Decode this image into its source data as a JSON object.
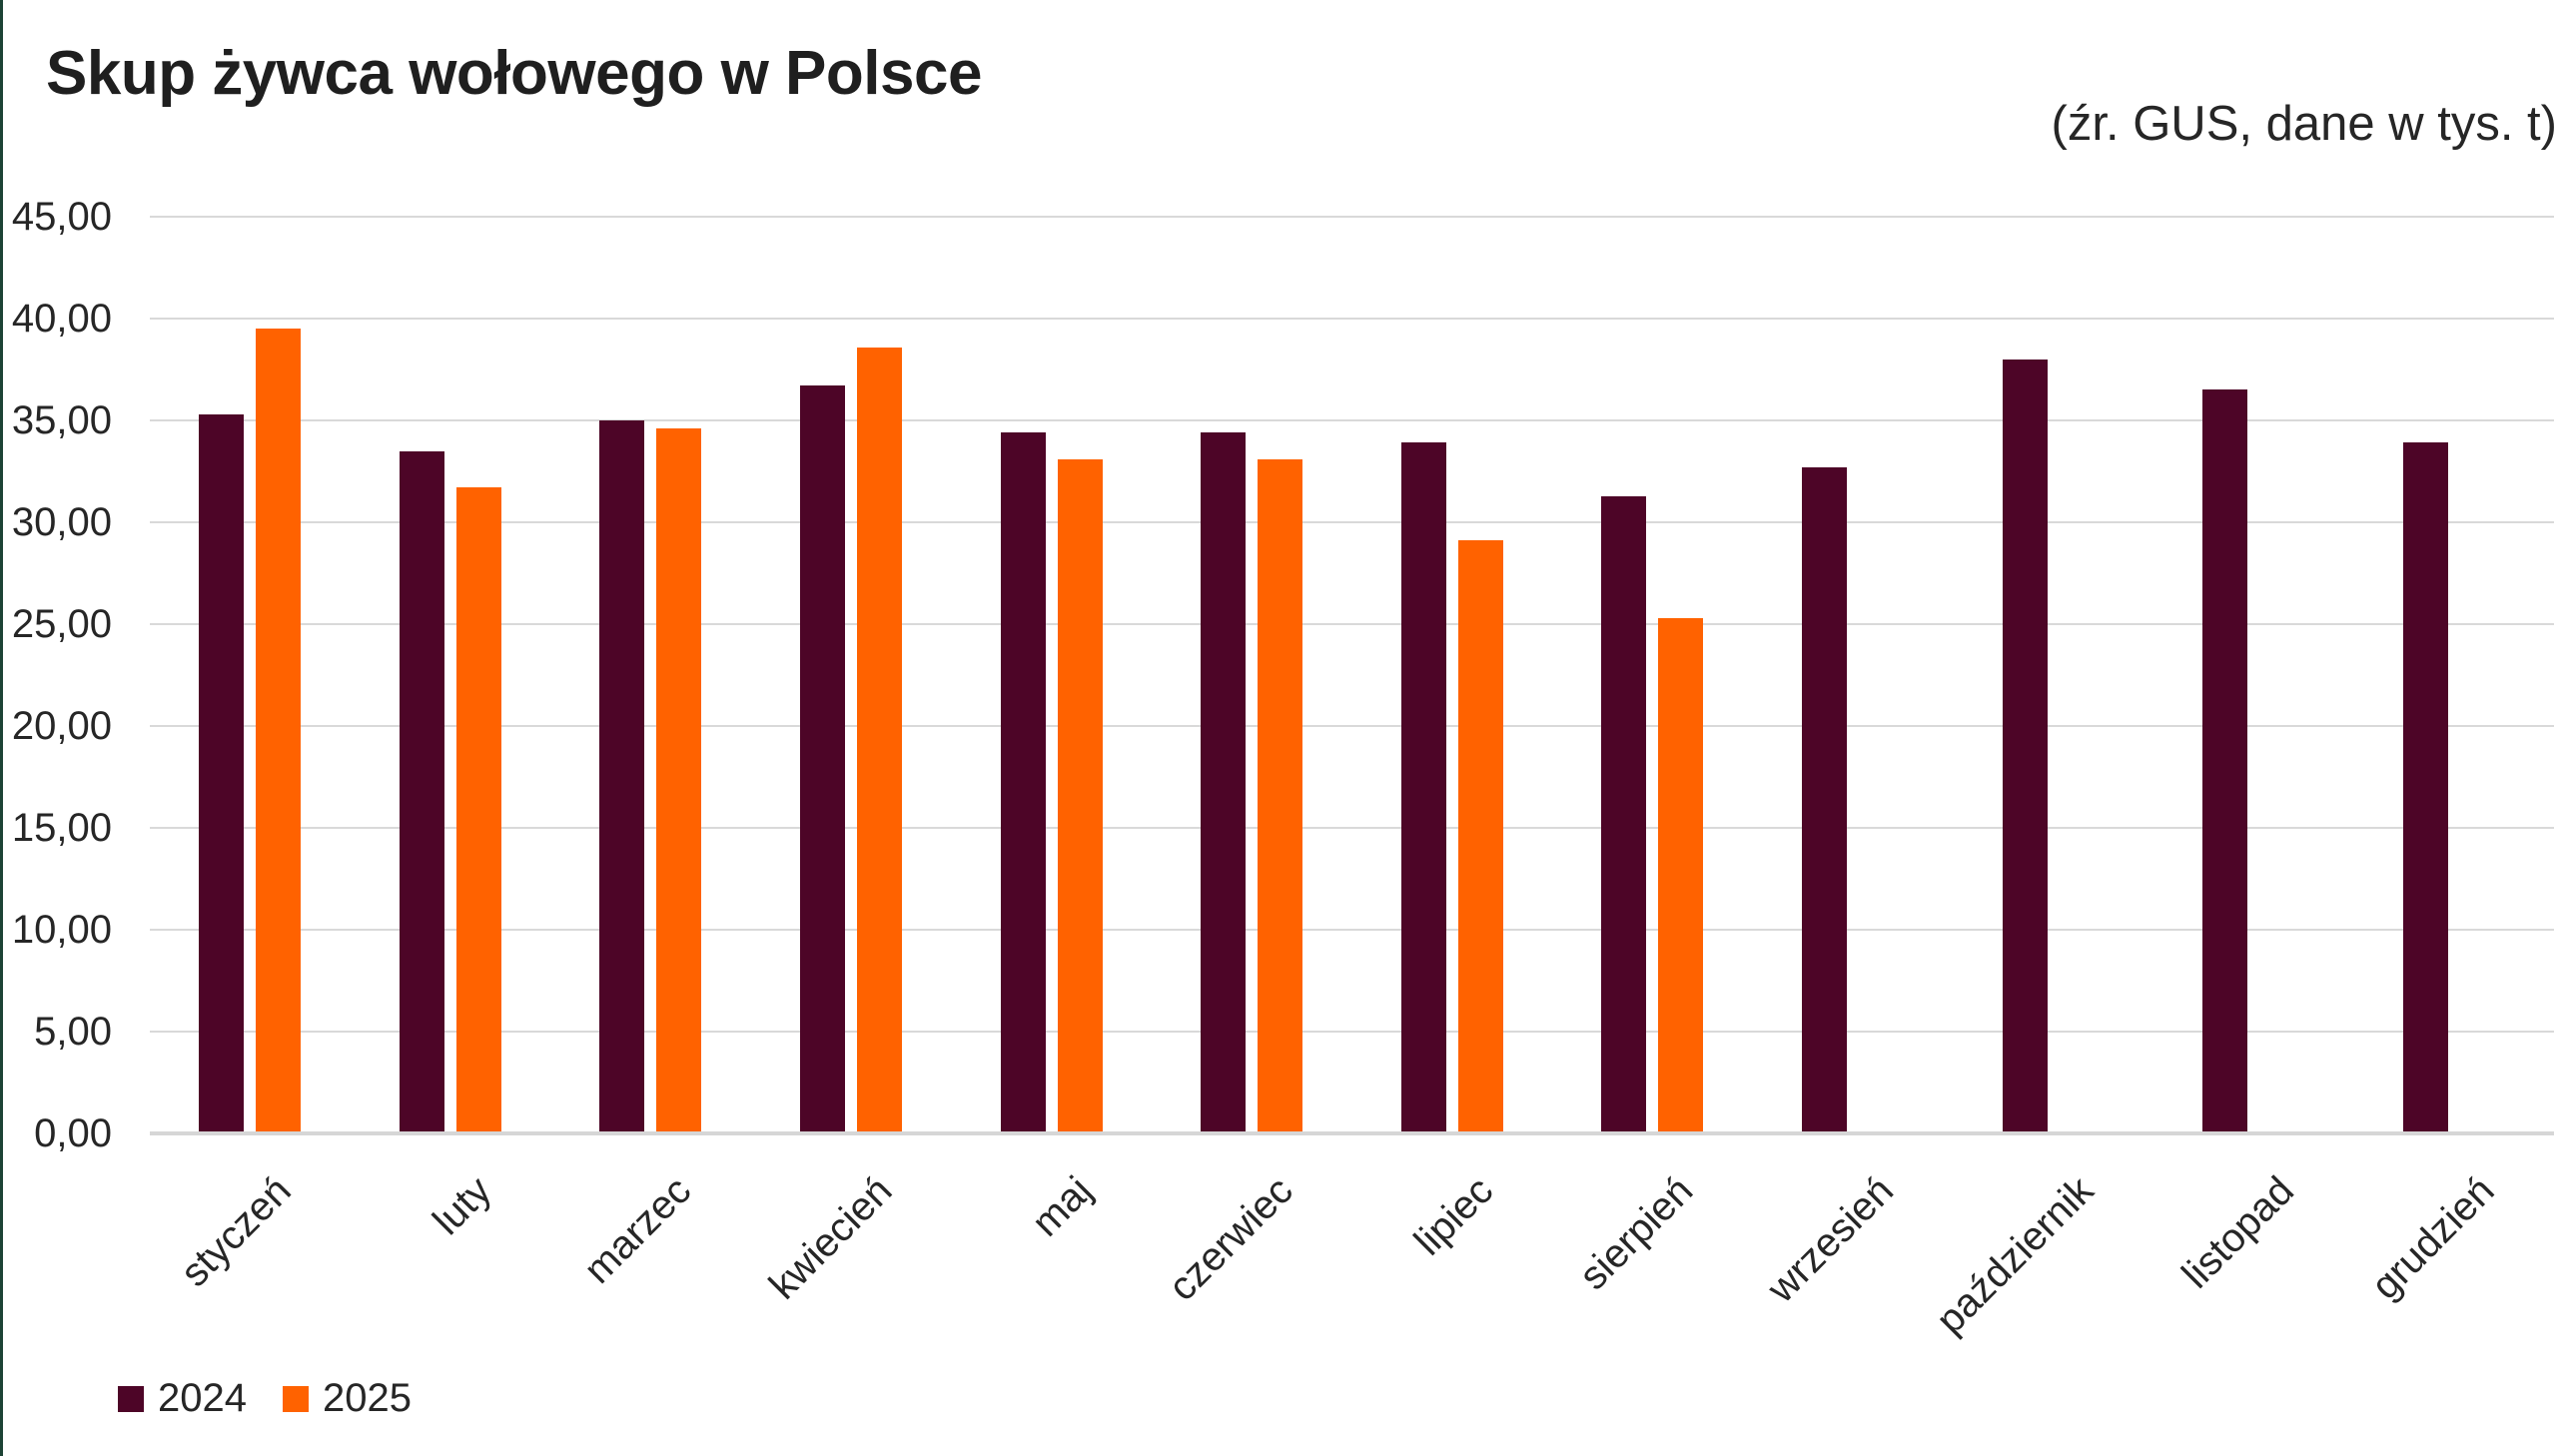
{
  "page": {
    "title": "Skup żywca wołowego w Polsce",
    "source_note": "(źr. GUS, dane w tys. t)"
  },
  "colors": {
    "series_2024": "#4d0527",
    "series_2025": "#ff6200",
    "gridline": "#d9d9d9",
    "axis_line": "#d6d6d6",
    "left_edge_accent": "#1d4335",
    "title_text": "#1f1f1f",
    "label_text": "#262626"
  },
  "legend": {
    "items": [
      {
        "label": "2024",
        "color_key": "series_2024"
      },
      {
        "label": "2025",
        "color_key": "series_2025"
      }
    ]
  },
  "chart_data": {
    "type": "bar",
    "title": "Skup żywca wołowego w Polsce",
    "subtitle": "(źr. GUS, dane w tys. t)",
    "xlabel": "",
    "ylabel": "",
    "categories": [
      "styczeń",
      "luty",
      "marzec",
      "kwiecień",
      "maj",
      "czerwiec",
      "lipiec",
      "sierpień",
      "wrzesień",
      "październik",
      "listopad",
      "grudzień"
    ],
    "series": [
      {
        "name": "2024",
        "color_key": "series_2024",
        "values": [
          35.2,
          33.4,
          34.9,
          36.6,
          34.3,
          34.3,
          33.8,
          31.2,
          32.6,
          37.9,
          36.4,
          33.8
        ]
      },
      {
        "name": "2025",
        "color_key": "series_2025",
        "values": [
          39.4,
          31.6,
          34.5,
          38.5,
          33.0,
          33.0,
          29.0,
          25.2,
          null,
          null,
          null,
          null
        ]
      }
    ],
    "ylim": [
      0,
      45
    ],
    "ytick_step": 5,
    "ytick_labels": [
      "0,00",
      "5,00",
      "10,00",
      "15,00",
      "20,00",
      "25,00",
      "30,00",
      "35,00",
      "40,00",
      "45,00"
    ],
    "grid": true,
    "legend_position": "bottom-left"
  }
}
